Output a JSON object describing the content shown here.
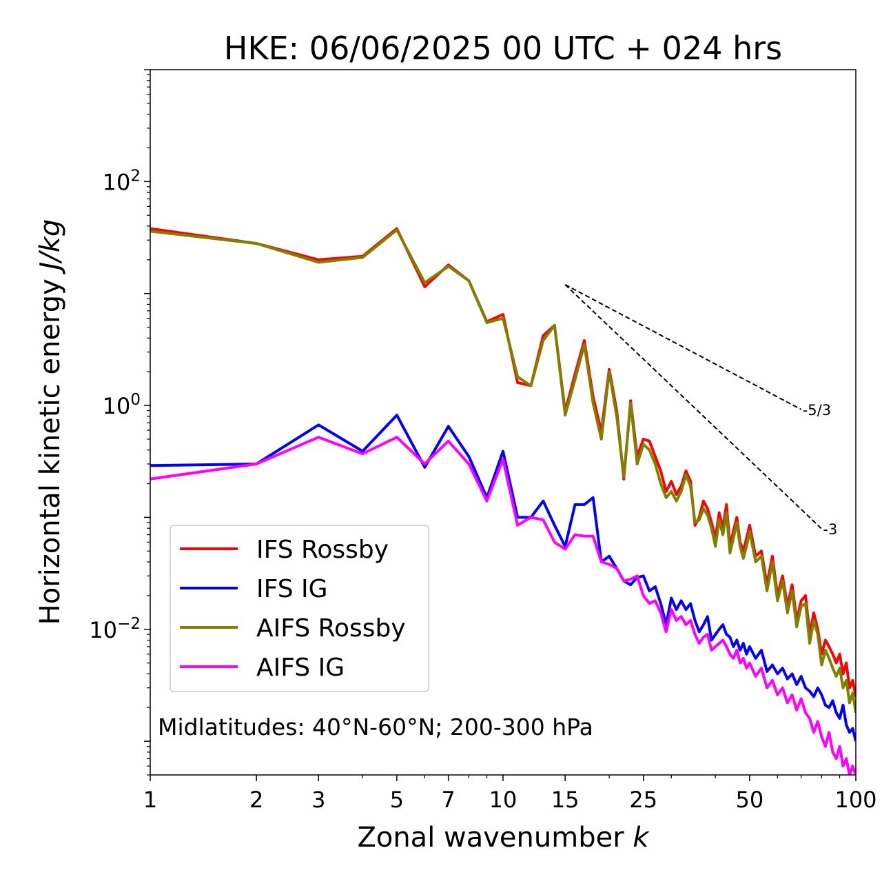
{
  "chart_data": {
    "type": "line",
    "title": "HKE: 06/06/2025 00 UTC + 024 hrs",
    "xlabel": "Zonal wavenumber",
    "xlabel_var": "k",
    "ylabel": "Horizontal kinetic energy",
    "ylabel_unit": "J/kg",
    "xscale": "log",
    "yscale": "log",
    "xlim": [
      1,
      100
    ],
    "ylim": [
      0.0005,
      1000
    ],
    "xticks": [
      {
        "value": 1,
        "label": "1"
      },
      {
        "value": 2,
        "label": "2"
      },
      {
        "value": 3,
        "label": "3"
      },
      {
        "value": 5,
        "label": "5"
      },
      {
        "value": 7,
        "label": "7"
      },
      {
        "value": 10,
        "label": "10"
      },
      {
        "value": 15,
        "label": "15"
      },
      {
        "value": 25,
        "label": "25"
      },
      {
        "value": 50,
        "label": "50"
      },
      {
        "value": 100,
        "label": "100"
      }
    ],
    "yticks": [
      {
        "value": 100,
        "base": "10",
        "exp": "2"
      },
      {
        "value": 1,
        "base": "10",
        "exp": "0"
      },
      {
        "value": 0.01,
        "base": "10",
        "exp": "−2"
      }
    ],
    "legend_position": "lower-left",
    "annotation": "Midlatitudes: 40°N-60°N; 200-300 hPa",
    "reference_lines": [
      {
        "label": "-5/3",
        "slope": -1.6667,
        "x": [
          15,
          70
        ],
        "y0": 12
      },
      {
        "label": "-3",
        "slope": -3,
        "x": [
          15,
          80
        ],
        "y0": 12
      }
    ],
    "series": [
      {
        "name": "IFS Rossby",
        "color": "#ff0000",
        "x": [
          1,
          2,
          3,
          4,
          5,
          6,
          7,
          8,
          9,
          10,
          11,
          12,
          13,
          14,
          15,
          16,
          17,
          18,
          19,
          20,
          21,
          22,
          23,
          24,
          25,
          26,
          27,
          28,
          29,
          30,
          31,
          32,
          33,
          34,
          35,
          36,
          37,
          38,
          39,
          40,
          41,
          42,
          43,
          44,
          45,
          46,
          47,
          48,
          49,
          50,
          52,
          54,
          56,
          58,
          60,
          62,
          64,
          66,
          68,
          70,
          72,
          74,
          76,
          78,
          80,
          82,
          84,
          86,
          88,
          90,
          92,
          94,
          96,
          98,
          100
        ],
        "y": [
          38,
          28,
          20,
          21.5,
          38,
          11.5,
          18,
          13,
          5.6,
          6.5,
          1.6,
          1.5,
          4.2,
          5.2,
          0.88,
          1.9,
          3.8,
          1.2,
          0.58,
          2.1,
          0.9,
          0.22,
          1.1,
          0.35,
          0.5,
          0.48,
          0.35,
          0.26,
          0.17,
          0.21,
          0.16,
          0.19,
          0.26,
          0.21,
          0.085,
          0.1,
          0.14,
          0.12,
          0.09,
          0.065,
          0.11,
          0.08,
          0.13,
          0.055,
          0.075,
          0.1,
          0.06,
          0.05,
          0.065,
          0.085,
          0.045,
          0.05,
          0.025,
          0.045,
          0.02,
          0.03,
          0.016,
          0.025,
          0.012,
          0.018,
          0.02,
          0.009,
          0.014,
          0.01,
          0.006,
          0.008,
          0.007,
          0.006,
          0.005,
          0.006,
          0.004,
          0.005,
          0.003,
          0.0035,
          0.0025
        ]
      },
      {
        "name": "IFS IG",
        "color": "#0000ff",
        "x": [
          1,
          2,
          3,
          4,
          5,
          6,
          7,
          8,
          9,
          10,
          11,
          12,
          13,
          14,
          15,
          16,
          17,
          18,
          19,
          20,
          21,
          22,
          23,
          24,
          25,
          26,
          27,
          28,
          29,
          30,
          31,
          32,
          33,
          34,
          35,
          36,
          37,
          38,
          39,
          40,
          41,
          42,
          43,
          44,
          45,
          46,
          47,
          48,
          49,
          50,
          52,
          54,
          56,
          58,
          60,
          62,
          64,
          66,
          68,
          70,
          72,
          74,
          76,
          78,
          80,
          82,
          84,
          86,
          88,
          90,
          92,
          94,
          96,
          98,
          100
        ],
        "y": [
          0.29,
          0.3,
          0.67,
          0.39,
          0.82,
          0.28,
          0.65,
          0.35,
          0.15,
          0.39,
          0.1,
          0.1,
          0.14,
          0.085,
          0.055,
          0.13,
          0.13,
          0.15,
          0.04,
          0.045,
          0.035,
          0.027,
          0.025,
          0.029,
          0.03,
          0.022,
          0.024,
          0.017,
          0.011,
          0.019,
          0.015,
          0.018,
          0.015,
          0.017,
          0.012,
          0.0095,
          0.011,
          0.013,
          0.008,
          0.009,
          0.01,
          0.011,
          0.009,
          0.0085,
          0.007,
          0.008,
          0.0065,
          0.0075,
          0.006,
          0.007,
          0.0055,
          0.0065,
          0.0042,
          0.0048,
          0.004,
          0.0045,
          0.0036,
          0.004,
          0.0032,
          0.0038,
          0.003,
          0.0028,
          0.0025,
          0.003,
          0.0026,
          0.0021,
          0.002,
          0.0023,
          0.0018,
          0.0016,
          0.0021,
          0.0014,
          0.0012,
          0.0013,
          0.001
        ]
      },
      {
        "name": "AIFS Rossby",
        "color": "#808000",
        "x": [
          1,
          2,
          3,
          4,
          5,
          6,
          7,
          8,
          9,
          10,
          11,
          12,
          13,
          14,
          15,
          16,
          17,
          18,
          19,
          20,
          21,
          22,
          23,
          24,
          25,
          26,
          27,
          28,
          29,
          30,
          31,
          32,
          33,
          34,
          35,
          36,
          37,
          38,
          39,
          40,
          41,
          42,
          43,
          44,
          45,
          46,
          47,
          48,
          49,
          50,
          52,
          54,
          56,
          58,
          60,
          62,
          64,
          66,
          68,
          70,
          72,
          74,
          76,
          78,
          80,
          82,
          84,
          86,
          88,
          90,
          92,
          94,
          96,
          98,
          100
        ],
        "y": [
          36,
          28,
          19,
          21,
          37,
          12.5,
          17.5,
          13,
          5.5,
          6,
          1.8,
          1.5,
          3.8,
          5.2,
          0.82,
          1.7,
          3.5,
          1.05,
          0.5,
          2,
          0.8,
          0.23,
          1.05,
          0.3,
          0.45,
          0.4,
          0.3,
          0.2,
          0.15,
          0.17,
          0.14,
          0.17,
          0.24,
          0.19,
          0.09,
          0.095,
          0.12,
          0.105,
          0.08,
          0.055,
          0.095,
          0.07,
          0.11,
          0.048,
          0.065,
          0.09,
          0.055,
          0.043,
          0.055,
          0.075,
          0.04,
          0.045,
          0.022,
          0.04,
          0.018,
          0.027,
          0.014,
          0.022,
          0.0105,
          0.016,
          0.017,
          0.0075,
          0.012,
          0.009,
          0.0048,
          0.0065,
          0.0055,
          0.0045,
          0.0038,
          0.0045,
          0.003,
          0.0035,
          0.0022,
          0.0027,
          0.0018
        ]
      },
      {
        "name": "AIFS IG",
        "color": "#ff00ff",
        "x": [
          1,
          2,
          3,
          4,
          5,
          6,
          7,
          8,
          9,
          10,
          11,
          12,
          13,
          14,
          15,
          16,
          17,
          18,
          19,
          20,
          21,
          22,
          23,
          24,
          25,
          26,
          27,
          28,
          29,
          30,
          31,
          32,
          33,
          34,
          35,
          36,
          37,
          38,
          39,
          40,
          41,
          42,
          43,
          44,
          45,
          46,
          47,
          48,
          49,
          50,
          52,
          54,
          56,
          58,
          60,
          62,
          64,
          66,
          68,
          70,
          72,
          74,
          76,
          78,
          80,
          82,
          84,
          86,
          88,
          90,
          92,
          94,
          96,
          98,
          100
        ],
        "y": [
          0.22,
          0.3,
          0.52,
          0.37,
          0.52,
          0.3,
          0.48,
          0.3,
          0.14,
          0.33,
          0.085,
          0.1,
          0.095,
          0.06,
          0.052,
          0.07,
          0.068,
          0.068,
          0.04,
          0.038,
          0.035,
          0.027,
          0.028,
          0.03,
          0.02,
          0.017,
          0.018,
          0.014,
          0.0095,
          0.015,
          0.012,
          0.013,
          0.011,
          0.012,
          0.009,
          0.0075,
          0.0085,
          0.009,
          0.0065,
          0.007,
          0.0075,
          0.008,
          0.007,
          0.006,
          0.0055,
          0.0065,
          0.005,
          0.0055,
          0.0045,
          0.005,
          0.0038,
          0.0045,
          0.003,
          0.0035,
          0.0026,
          0.003,
          0.0022,
          0.0026,
          0.0019,
          0.0024,
          0.0018,
          0.0016,
          0.0012,
          0.0015,
          0.0011,
          0.0009,
          0.0012,
          0.0008,
          0.0007,
          0.0009,
          0.0006,
          0.0007,
          0.0005,
          0.0006,
          0.0005
        ]
      }
    ]
  }
}
